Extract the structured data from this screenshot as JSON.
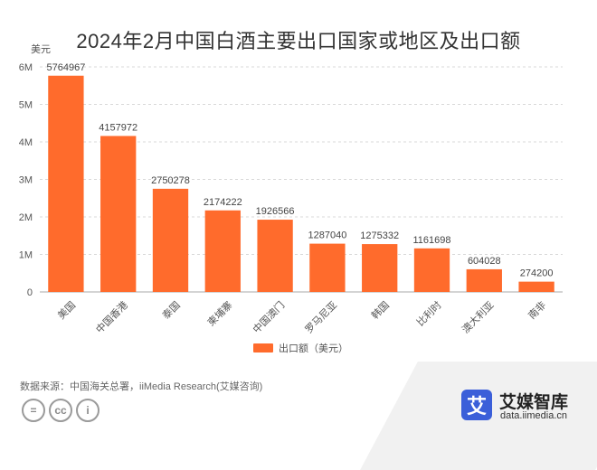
{
  "chart_data": {
    "type": "bar",
    "title": "2024年2月中国白酒主要出口国家或地区及出口额",
    "unit_label": "美元",
    "categories": [
      "美国",
      "中国香港",
      "泰国",
      "柬埔寨",
      "中国澳门",
      "罗马尼亚",
      "韩国",
      "比利时",
      "澳大利亚",
      "南非"
    ],
    "series": [
      {
        "name": "出口额（美元）",
        "values": [
          5764967,
          4157972,
          2750278,
          2174222,
          1926566,
          1287040,
          1275332,
          1161698,
          604028,
          274200
        ]
      }
    ],
    "y_ticks": [
      "0",
      "1M",
      "2M",
      "3M",
      "4M",
      "5M",
      "6M"
    ],
    "ylim": [
      0,
      6000000
    ],
    "grid": true,
    "legend_position": "bottom",
    "colors": {
      "bar": "#FF6B2C",
      "grid": "#d8d8d8"
    }
  },
  "footer": {
    "source": "数据来源：中国海关总署，iiMedia Research(艾媒咨询)",
    "license_icons": [
      "=",
      "cc",
      "i"
    ],
    "brand_logo_char": "艾",
    "brand_name": "艾媒智库",
    "brand_url": "data.iimedia.cn"
  }
}
